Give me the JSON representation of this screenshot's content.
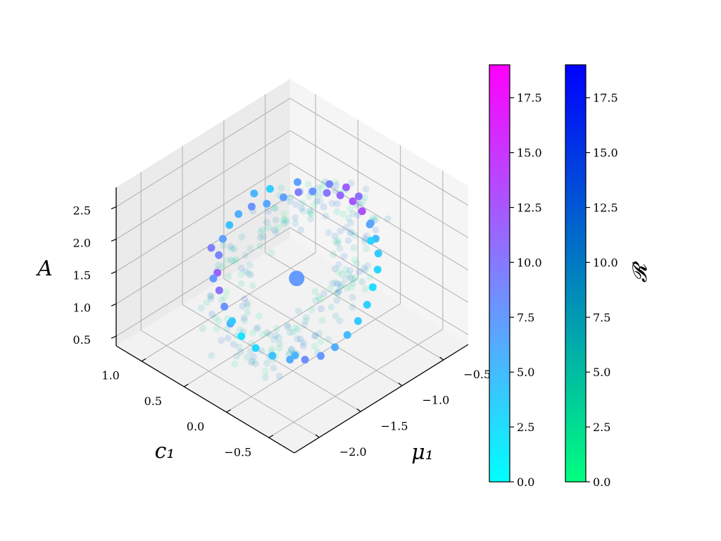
{
  "chart_data": {
    "type": "scatter",
    "projection": "3d",
    "title": "",
    "axes": {
      "x": {
        "label": "μ₁",
        "ticks": [
          "−2.0",
          "−1.5",
          "−1.0",
          "−0.5"
        ],
        "tick_values": [
          -2.0,
          -1.5,
          -1.0,
          -0.5
        ],
        "range": [
          -2.3,
          -0.2
        ]
      },
      "y": {
        "label": "c₁",
        "ticks": [
          "−0.5",
          "0.0",
          "0.5",
          "1.0"
        ],
        "tick_values": [
          -0.5,
          0.0,
          0.5,
          1.0
        ],
        "range": [
          -0.8,
          1.3
        ]
      },
      "z": {
        "label": "A",
        "ticks": [
          "0.5",
          "1.0",
          "1.5",
          "2.0",
          "2.5"
        ],
        "tick_values": [
          0.5,
          1.0,
          1.5,
          2.0,
          2.5
        ],
        "range": [
          0.35,
          2.8
        ]
      }
    },
    "grid": true,
    "colorbars": [
      {
        "name": "colorbar-cool",
        "label": "",
        "ticks": [
          "0.0",
          "2.5",
          "5.0",
          "7.5",
          "10.0",
          "12.5",
          "15.0",
          "17.5"
        ],
        "tick_values": [
          0,
          2.5,
          5,
          7.5,
          10,
          12.5,
          15,
          17.5
        ],
        "range": [
          0,
          19
        ],
        "colors": [
          "#00ffff",
          "#ff00ff"
        ]
      },
      {
        "name": "colorbar-winter",
        "label": "𝓡",
        "ticks": [
          "0.0",
          "2.5",
          "5.0",
          "7.5",
          "10.0",
          "12.5",
          "15.0",
          "17.5"
        ],
        "tick_values": [
          0,
          2.5,
          5,
          7.5,
          10,
          12.5,
          15,
          17.5
        ],
        "range": [
          0,
          19
        ],
        "colors": [
          "#00ff80",
          "#0000ff"
        ]
      }
    ],
    "series": [
      {
        "role": "ring-points",
        "colormap": "cool",
        "alpha": 1.0,
        "points": [
          [
            -1.25,
            0.55,
            2.3,
            6.5
          ],
          [
            -1.12,
            0.48,
            2.35,
            7.0
          ],
          [
            -1.0,
            0.42,
            2.38,
            9.5
          ],
          [
            -0.9,
            0.35,
            2.37,
            8.0
          ],
          [
            -0.8,
            0.28,
            2.32,
            10.0
          ],
          [
            -0.7,
            0.22,
            2.25,
            11.0
          ],
          [
            -0.62,
            0.15,
            2.15,
            12.5
          ],
          [
            -0.58,
            0.08,
            2.02,
            13.0
          ],
          [
            -0.56,
            0.0,
            1.88,
            7.5
          ],
          [
            -0.58,
            -0.08,
            1.72,
            5.0
          ],
          [
            -0.62,
            -0.15,
            1.58,
            4.0
          ],
          [
            -0.7,
            -0.22,
            1.45,
            3.0
          ],
          [
            -0.82,
            -0.28,
            1.32,
            2.5
          ],
          [
            -0.95,
            -0.34,
            1.2,
            3.5
          ],
          [
            -1.1,
            -0.38,
            1.1,
            4.0
          ],
          [
            -1.25,
            -0.4,
            1.02,
            5.0
          ],
          [
            -1.4,
            -0.4,
            0.95,
            6.0
          ],
          [
            -1.55,
            -0.38,
            0.92,
            7.5
          ],
          [
            -1.7,
            -0.34,
            0.95,
            8.5
          ],
          [
            -1.82,
            -0.28,
            1.0,
            6.0
          ],
          [
            -1.95,
            -0.2,
            1.1,
            4.5
          ],
          [
            -2.05,
            -0.1,
            1.22,
            3.0
          ],
          [
            -2.12,
            0.0,
            1.38,
            2.0
          ],
          [
            -2.15,
            0.1,
            1.52,
            6.0
          ],
          [
            -2.12,
            0.2,
            1.68,
            8.0
          ],
          [
            -2.08,
            0.3,
            1.82,
            10.5
          ],
          [
            -2.0,
            0.4,
            1.95,
            11.5
          ],
          [
            -1.9,
            0.48,
            2.08,
            9.0
          ],
          [
            -1.78,
            0.55,
            2.18,
            7.0
          ],
          [
            -1.65,
            0.6,
            2.25,
            4.5
          ],
          [
            -1.52,
            0.62,
            2.3,
            6.0
          ],
          [
            -1.38,
            0.6,
            2.32,
            8.0
          ],
          [
            -1.3,
            0.65,
            2.42,
            5.5
          ],
          [
            -1.18,
            0.58,
            2.45,
            3.5
          ],
          [
            -0.95,
            0.48,
            2.45,
            7.0
          ],
          [
            -0.75,
            0.3,
            2.4,
            9.0
          ],
          [
            -0.65,
            0.2,
            2.35,
            12.0
          ],
          [
            -0.6,
            0.1,
            2.25,
            10.5
          ],
          [
            -0.62,
            -0.05,
            1.95,
            6.5
          ],
          [
            -0.68,
            -0.12,
            1.8,
            3.0
          ],
          [
            -2.18,
            0.05,
            1.62,
            4.0
          ],
          [
            -2.1,
            0.35,
            1.98,
            7.5
          ],
          [
            -1.95,
            0.52,
            2.2,
            9.5
          ],
          [
            -1.8,
            -0.32,
            1.08,
            5.5
          ]
        ]
      },
      {
        "role": "cloud-points",
        "colormap": "winter",
        "alpha": 0.12,
        "count": 260
      },
      {
        "role": "center-point",
        "colormap": "cool",
        "alpha": 1.0,
        "points": [
          [
            -1.35,
            0.1,
            1.58,
            7.5
          ]
        ]
      }
    ]
  }
}
